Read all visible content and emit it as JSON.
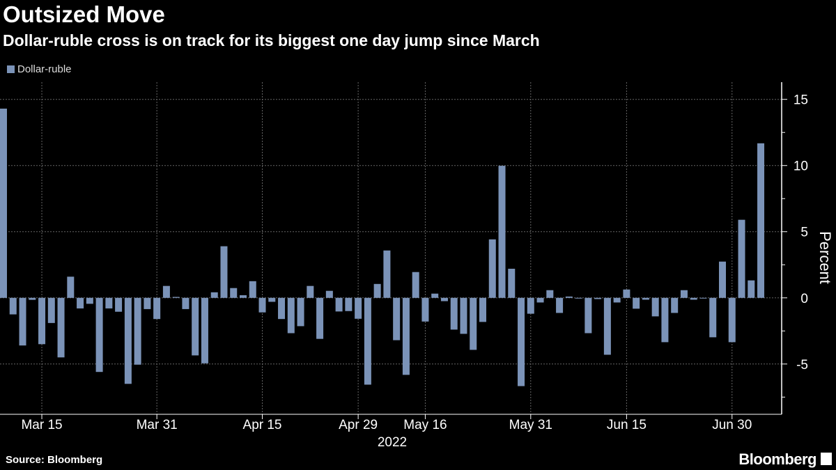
{
  "chart_data": {
    "type": "bar",
    "title": "Outsized Move",
    "subtitle": "Dollar-ruble cross is on track for its biggest one day jump since March",
    "ylabel": "Percent",
    "ylim": [
      -8.8,
      16.3
    ],
    "yticks": [
      15,
      10,
      5,
      0,
      -5
    ],
    "grid": true,
    "legend_position": "top-left",
    "series": [
      {
        "name": "Dollar-ruble",
        "color": "#7b93b8",
        "values": [
          14.3,
          -1.25,
          -3.6,
          -0.15,
          -3.5,
          -1.9,
          -4.5,
          1.6,
          -0.8,
          -0.45,
          -5.6,
          -0.8,
          -1.05,
          -6.5,
          -5.05,
          -0.85,
          -1.6,
          0.9,
          0.07,
          -0.85,
          -4.35,
          -4.95,
          0.42,
          3.9,
          0.74,
          0.2,
          1.26,
          -1.1,
          -0.3,
          -1.6,
          -2.67,
          -2.14,
          0.9,
          -3.1,
          0.53,
          -1.03,
          -1.0,
          -1.58,
          -6.56,
          1.05,
          3.58,
          -3.2,
          -5.82,
          1.95,
          -1.79,
          0.32,
          -0.25,
          -2.4,
          -2.72,
          -3.93,
          -1.82,
          4.42,
          9.98,
          2.2,
          -6.67,
          -1.2,
          -0.35,
          0.58,
          -1.14,
          0.1,
          -0.03,
          -2.67,
          -0.09,
          -4.3,
          -0.35,
          0.63,
          -0.82,
          -0.14,
          -1.4,
          -3.35,
          -1.14,
          0.58,
          -0.14,
          -0.03,
          -2.98,
          2.74,
          -3.35,
          5.9,
          1.32,
          11.68
        ]
      }
    ],
    "x": [
      "2022-03-09",
      "2022-03-10",
      "2022-03-11",
      "2022-03-14",
      "2022-03-15",
      "2022-03-16",
      "2022-03-17",
      "2022-03-18",
      "2022-03-21",
      "2022-03-22",
      "2022-03-23",
      "2022-03-24",
      "2022-03-25",
      "2022-03-28",
      "2022-03-29",
      "2022-03-30",
      "2022-03-31",
      "2022-04-01",
      "2022-04-04",
      "2022-04-05",
      "2022-04-06",
      "2022-04-07",
      "2022-04-08",
      "2022-04-11",
      "2022-04-12",
      "2022-04-13",
      "2022-04-14",
      "2022-04-15",
      "2022-04-18",
      "2022-04-19",
      "2022-04-20",
      "2022-04-21",
      "2022-04-22",
      "2022-04-25",
      "2022-04-26",
      "2022-04-27",
      "2022-04-28",
      "2022-04-29",
      "2022-05-04",
      "2022-05-05",
      "2022-05-06",
      "2022-05-11",
      "2022-05-12",
      "2022-05-13",
      "2022-05-16",
      "2022-05-17",
      "2022-05-18",
      "2022-05-19",
      "2022-05-20",
      "2022-05-23",
      "2022-05-24",
      "2022-05-25",
      "2022-05-26",
      "2022-05-27",
      "2022-05-30",
      "2022-05-31",
      "2022-06-01",
      "2022-06-02",
      "2022-06-03",
      "2022-06-06",
      "2022-06-07",
      "2022-06-08",
      "2022-06-09",
      "2022-06-10",
      "2022-06-14",
      "2022-06-15",
      "2022-06-16",
      "2022-06-17",
      "2022-06-20",
      "2022-06-21",
      "2022-06-22",
      "2022-06-23",
      "2022-06-24",
      "2022-06-27",
      "2022-06-28",
      "2022-06-29",
      "2022-06-30",
      "2022-07-01",
      "2022-07-04",
      "2022-07-05"
    ],
    "xticks": [
      {
        "date": "2022-03-15",
        "label": "Mar 15"
      },
      {
        "date": "2022-03-31",
        "label": "Mar 31"
      },
      {
        "date": "2022-04-15",
        "label": "Apr 15"
      },
      {
        "date": "2022-04-29",
        "label": "Apr 29"
      },
      {
        "date": "2022-05-16",
        "label": "May 16"
      },
      {
        "date": "2022-05-31",
        "label": "May 31"
      },
      {
        "date": "2022-06-15",
        "label": "Jun 15"
      },
      {
        "date": "2022-06-30",
        "label": "Jun 30"
      }
    ],
    "xaxis_year": "2022"
  },
  "footer": {
    "source": "Source: Bloomberg",
    "brand": "Bloomberg"
  }
}
